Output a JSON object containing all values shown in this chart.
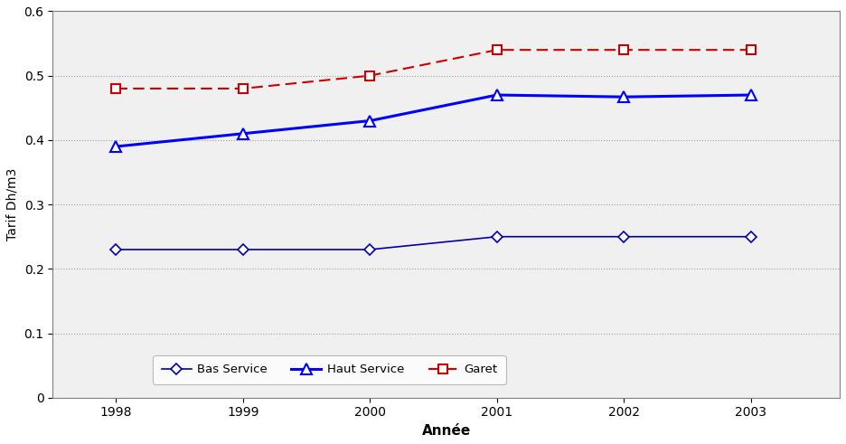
{
  "years": [
    1998,
    1999,
    2000,
    2001,
    2002,
    2003
  ],
  "bas_service": [
    0.23,
    0.23,
    0.23,
    0.25,
    0.25,
    0.25
  ],
  "haut_service": [
    0.39,
    0.41,
    0.43,
    0.47,
    0.467,
    0.47
  ],
  "garet": [
    0.48,
    0.48,
    0.5,
    0.54,
    0.54,
    0.54
  ],
  "line_color_blue_dark": "#0000AA",
  "line_color_blue_bright": "#0000FF",
  "line_color_red": "#CC0000",
  "ylabel": "Tarif Dh/m3",
  "xlabel": "Année",
  "ylim": [
    0,
    0.6
  ],
  "yticks": [
    0,
    0.1,
    0.2,
    0.3,
    0.4,
    0.5,
    0.6
  ],
  "ytick_labels": [
    "0",
    "0.1",
    "0.2",
    "0.3",
    "0.4",
    "0.5",
    "0.6"
  ],
  "legend_bas": "Bas Service",
  "legend_haut": "Haut Service",
  "legend_garet": "Garet",
  "plot_bg_color": "#f0f0f0",
  "fig_bg_color": "#ffffff",
  "grid_color": "#a0a0a0",
  "spine_color": "#808080"
}
